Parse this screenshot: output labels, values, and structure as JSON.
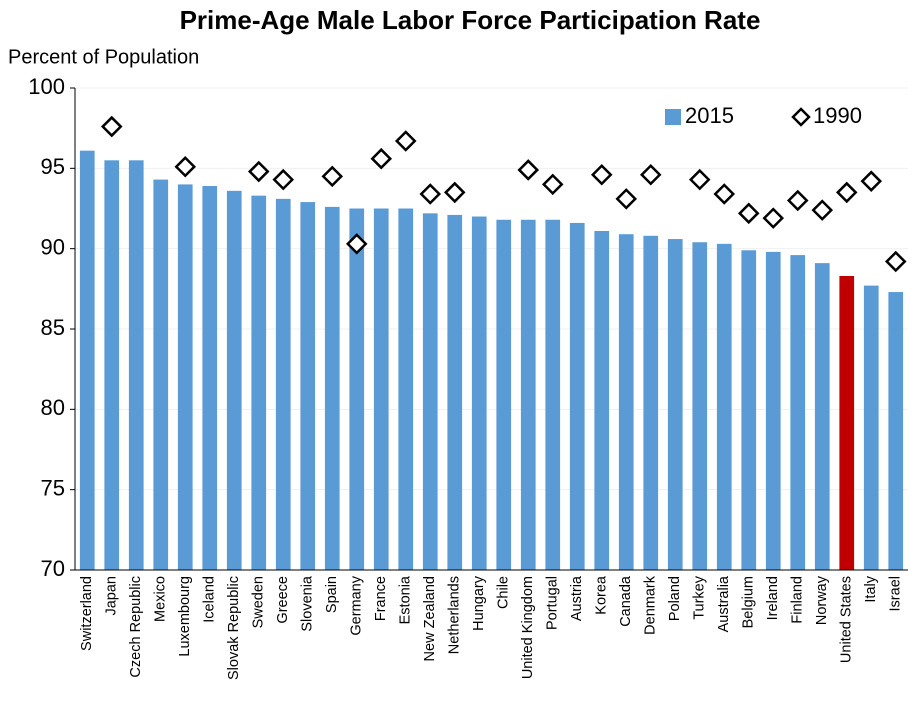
{
  "chart_data": {
    "type": "bar",
    "title": "Prime-Age Male Labor Force Participation Rate",
    "y_label": "Percent of Population",
    "categories": [
      "Switzerland",
      "Japan",
      "Czech Republic",
      "Mexico",
      "Luxembourg",
      "Iceland",
      "Slovak Republic",
      "Sweden",
      "Greece",
      "Slovenia",
      "Spain",
      "Germany",
      "France",
      "Estonia",
      "New Zealand",
      "Netherlands",
      "Hungary",
      "Chile",
      "United Kingdom",
      "Portugal",
      "Austria",
      "Korea",
      "Canada",
      "Denmark",
      "Poland",
      "Turkey",
      "Australia",
      "Belgium",
      "Ireland",
      "Finland",
      "Norway",
      "United States",
      "Italy",
      "Israel"
    ],
    "series": [
      {
        "name": "2015",
        "type": "bar",
        "color": "#5b9bd5",
        "colors": [
          "#5b9bd5",
          "#5b9bd5",
          "#5b9bd5",
          "#5b9bd5",
          "#5b9bd5",
          "#5b9bd5",
          "#5b9bd5",
          "#5b9bd5",
          "#5b9bd5",
          "#5b9bd5",
          "#5b9bd5",
          "#5b9bd5",
          "#5b9bd5",
          "#5b9bd5",
          "#5b9bd5",
          "#5b9bd5",
          "#5b9bd5",
          "#5b9bd5",
          "#5b9bd5",
          "#5b9bd5",
          "#5b9bd5",
          "#5b9bd5",
          "#5b9bd5",
          "#5b9bd5",
          "#5b9bd5",
          "#5b9bd5",
          "#5b9bd5",
          "#5b9bd5",
          "#5b9bd5",
          "#5b9bd5",
          "#5b9bd5",
          "#c00000",
          "#5b9bd5",
          "#5b9bd5"
        ],
        "values": [
          96.1,
          95.5,
          95.5,
          94.3,
          94.0,
          93.9,
          93.6,
          93.3,
          93.1,
          92.9,
          92.6,
          92.5,
          92.5,
          92.5,
          92.2,
          92.1,
          92.0,
          91.8,
          91.8,
          91.8,
          91.6,
          91.1,
          90.9,
          90.8,
          90.6,
          90.4,
          90.3,
          89.9,
          89.8,
          89.6,
          89.1,
          88.3,
          87.7,
          87.3
        ]
      },
      {
        "name": "1990",
        "type": "marker",
        "color": "#000000",
        "values": [
          null,
          97.6,
          null,
          null,
          95.1,
          null,
          null,
          94.8,
          94.3,
          null,
          94.5,
          90.3,
          95.6,
          96.7,
          93.4,
          93.5,
          null,
          null,
          94.9,
          94.0,
          null,
          94.6,
          93.1,
          94.6,
          null,
          94.3,
          93.4,
          92.2,
          91.9,
          93.0,
          92.4,
          93.5,
          94.2,
          89.2
        ]
      }
    ],
    "ylim": [
      70,
      100
    ],
    "yticks": [
      70,
      75,
      80,
      85,
      90,
      95,
      100
    ],
    "grid": true,
    "legend": "top-right"
  }
}
